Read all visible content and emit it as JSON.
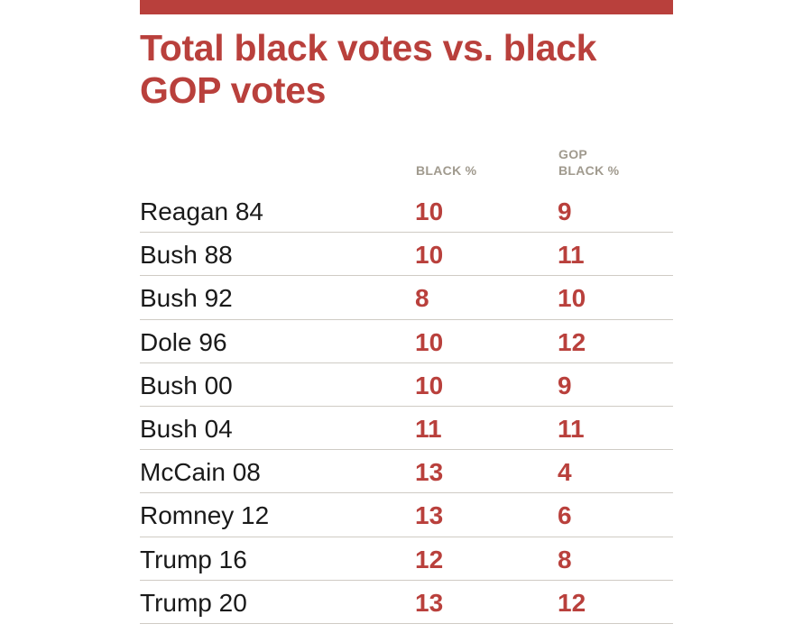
{
  "accent_color": "#b9403c",
  "header_color": "#a09a8e",
  "chart_data": {
    "type": "table",
    "title": "Total black votes vs. black GOP votes",
    "columns": [
      "BLACK %",
      "GOP\nBLACK %"
    ],
    "rows": [
      {
        "label": "Reagan 84",
        "black_pct": "10",
        "gop_black_pct": "9"
      },
      {
        "label": "Bush 88",
        "black_pct": "10",
        "gop_black_pct": "11"
      },
      {
        "label": "Bush 92",
        "black_pct": "8",
        "gop_black_pct": "10"
      },
      {
        "label": "Dole 96",
        "black_pct": "10",
        "gop_black_pct": "12"
      },
      {
        "label": "Bush 00",
        "black_pct": "10",
        "gop_black_pct": "9"
      },
      {
        "label": "Bush 04",
        "black_pct": "11",
        "gop_black_pct": "11"
      },
      {
        "label": "McCain 08",
        "black_pct": "13",
        "gop_black_pct": "4"
      },
      {
        "label": "Romney 12",
        "black_pct": "13",
        "gop_black_pct": "6"
      },
      {
        "label": "Trump 16",
        "black_pct": "12",
        "gop_black_pct": "8"
      },
      {
        "label": "Trump 20",
        "black_pct": "13",
        "gop_black_pct": "12"
      }
    ]
  }
}
